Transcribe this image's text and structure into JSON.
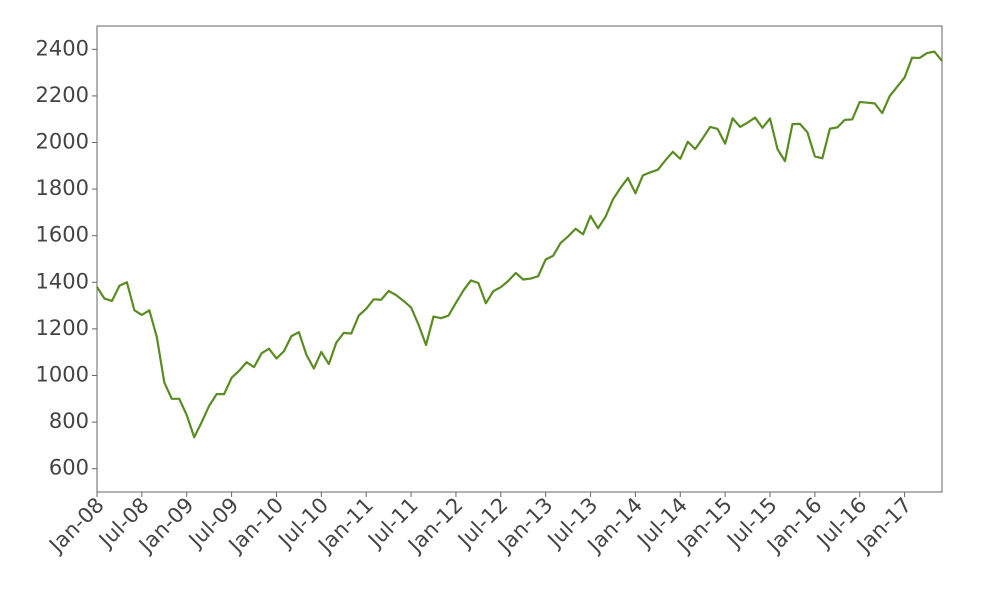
{
  "chart_data": {
    "type": "line",
    "x": [
      "Jan-08",
      null,
      null,
      null,
      null,
      null,
      "Jul-08",
      null,
      null,
      null,
      null,
      null,
      "Jan-09",
      null,
      null,
      null,
      null,
      null,
      "Jul-09",
      null,
      null,
      null,
      null,
      null,
      "Jan-10",
      null,
      null,
      null,
      null,
      null,
      "Jul-10",
      null,
      null,
      null,
      null,
      null,
      "Jan-11",
      null,
      null,
      null,
      null,
      null,
      "Jul-11",
      null,
      null,
      null,
      null,
      null,
      "Jan-12",
      null,
      null,
      null,
      null,
      null,
      "Jul-12",
      null,
      null,
      null,
      null,
      null,
      "Jan-13",
      null,
      null,
      null,
      null,
      null,
      "Jul-13",
      null,
      null,
      null,
      null,
      null,
      "Jan-14",
      null,
      null,
      null,
      null,
      null,
      "Jul-14",
      null,
      null,
      null,
      null,
      null,
      "Jan-15",
      null,
      null,
      null,
      null,
      null,
      "Jul-15",
      null,
      null,
      null,
      null,
      null,
      "Jan-16",
      null,
      null,
      null,
      null,
      null,
      "Jul-16",
      null,
      null,
      null,
      null,
      null,
      "Jan-17",
      null,
      null,
      null,
      null,
      null
    ],
    "values": [
      1380,
      1330,
      1320,
      1385,
      1400,
      1280,
      1260,
      1280,
      1165,
      970,
      900,
      900,
      830,
      735,
      800,
      870,
      920,
      920,
      990,
      1020,
      1057,
      1036,
      1095,
      1115,
      1073,
      1104,
      1169,
      1186,
      1089,
      1030,
      1101,
      1049,
      1141,
      1183,
      1180,
      1257,
      1286,
      1327,
      1325,
      1363,
      1345,
      1320,
      1292,
      1218,
      1131,
      1253,
      1246,
      1257,
      1312,
      1365,
      1408,
      1397,
      1310,
      1362,
      1379,
      1406,
      1440,
      1412,
      1416,
      1426,
      1498,
      1514,
      1569,
      1597,
      1630,
      1606,
      1685,
      1632,
      1681,
      1756,
      1805,
      1848,
      1782,
      1859,
      1872,
      1883,
      1923,
      1960,
      1930,
      2003,
      1972,
      2018,
      2067,
      2058,
      1995,
      2104,
      2067,
      2085,
      2107,
      2063,
      2103,
      1972,
      1920,
      2079,
      2080,
      2044,
      1940,
      1932,
      2059,
      2065,
      2097,
      2099,
      2174,
      2171,
      2168,
      2126,
      2199,
      2239,
      2279,
      2364,
      2363,
      2384,
      2390,
      2350
    ],
    "color": "#5b8c23",
    "ylim": [
      500,
      2500
    ],
    "yticks": [
      600,
      800,
      1000,
      1200,
      1400,
      1600,
      1800,
      2000,
      2200,
      2400
    ]
  }
}
